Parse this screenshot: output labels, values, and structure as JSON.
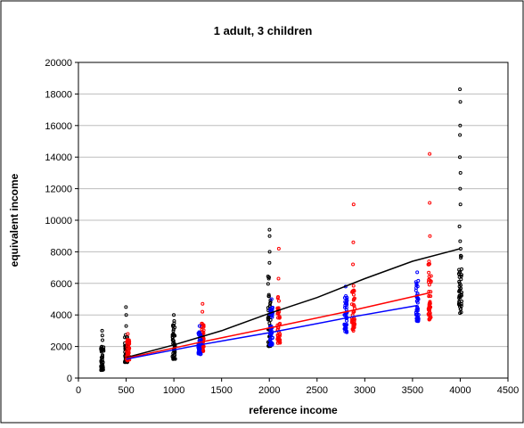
{
  "chart_data": {
    "type": "scatter",
    "title": "1 adult, 3 children",
    "xlabel": "reference income",
    "ylabel": "equivalent income",
    "xlim": [
      0,
      4500
    ],
    "ylim": [
      0,
      20000
    ],
    "x_ticks": [
      0,
      500,
      1000,
      1500,
      2000,
      2500,
      3000,
      3500,
      4000,
      4500
    ],
    "y_ticks": [
      0,
      2000,
      4000,
      6000,
      8000,
      10000,
      12000,
      14000,
      16000,
      18000,
      20000
    ],
    "grid": true,
    "legend": "none",
    "colors": {
      "black": "#000000",
      "red": "#ff0000",
      "blue": "#0000ff"
    },
    "series": [
      {
        "color": "#000000",
        "marker": "circle",
        "clusters": [
          {
            "x": 250,
            "y_min": 500,
            "y_max": 2000,
            "y_outliers": [
              2400,
              2700,
              3000
            ]
          },
          {
            "x": 500,
            "y_min": 1000,
            "y_max": 2800,
            "y_outliers": [
              3300,
              4000,
              4500
            ]
          },
          {
            "x": 1000,
            "y_min": 1200,
            "y_max": 3800,
            "y_outliers": [
              4000
            ]
          },
          {
            "x": 2000,
            "y_min": 2000,
            "y_max": 6500,
            "y_outliers": [
              7300,
              8000,
              9000,
              9400
            ]
          },
          {
            "x": 4000,
            "y_min": 4100,
            "y_max": 10000,
            "y_outliers": [
              11000,
              12000,
              13000,
              14000,
              15400,
              16000,
              17500,
              18300
            ]
          }
        ],
        "trend": [
          [
            500,
            1300
          ],
          [
            1000,
            2100
          ],
          [
            1500,
            3000
          ],
          [
            2000,
            4100
          ],
          [
            2500,
            5100
          ],
          [
            3000,
            6300
          ],
          [
            3500,
            7400
          ],
          [
            4000,
            8200
          ]
        ]
      },
      {
        "color": "#ff0000",
        "marker": "circle",
        "clusters": [
          {
            "x": 520,
            "y_min": 1100,
            "y_max": 2500,
            "y_outliers": [
              2800
            ]
          },
          {
            "x": 1300,
            "y_min": 1700,
            "y_max": 3500,
            "y_outliers": [
              4200,
              4700
            ]
          },
          {
            "x": 2100,
            "y_min": 2200,
            "y_max": 5300,
            "y_outliers": [
              6300,
              8200
            ]
          },
          {
            "x": 2880,
            "y_min": 2900,
            "y_max": 6000,
            "y_outliers": [
              7200,
              8600,
              11000
            ]
          },
          {
            "x": 3680,
            "y_min": 3700,
            "y_max": 7500,
            "y_outliers": [
              9000,
              11100,
              14200
            ]
          }
        ],
        "trend": [
          [
            500,
            1250
          ],
          [
            1300,
            2300
          ],
          [
            2100,
            3300
          ],
          [
            2880,
            4300
          ],
          [
            3680,
            5400
          ]
        ]
      },
      {
        "color": "#0000ff",
        "marker": "circle",
        "clusters": [
          {
            "x": 1270,
            "y_min": 1500,
            "y_max": 3000,
            "y_outliers": [
              3300
            ]
          },
          {
            "x": 2020,
            "y_min": 2100,
            "y_max": 4500,
            "y_outliers": [
              5000
            ]
          },
          {
            "x": 2800,
            "y_min": 2900,
            "y_max": 5300,
            "y_outliers": [
              5800
            ]
          },
          {
            "x": 3550,
            "y_min": 3600,
            "y_max": 6200,
            "y_outliers": [
              6700
            ]
          }
        ],
        "trend": [
          [
            500,
            1200
          ],
          [
            1270,
            2100
          ],
          [
            2020,
            2900
          ],
          [
            2800,
            3800
          ],
          [
            3550,
            4600
          ]
        ]
      }
    ]
  }
}
